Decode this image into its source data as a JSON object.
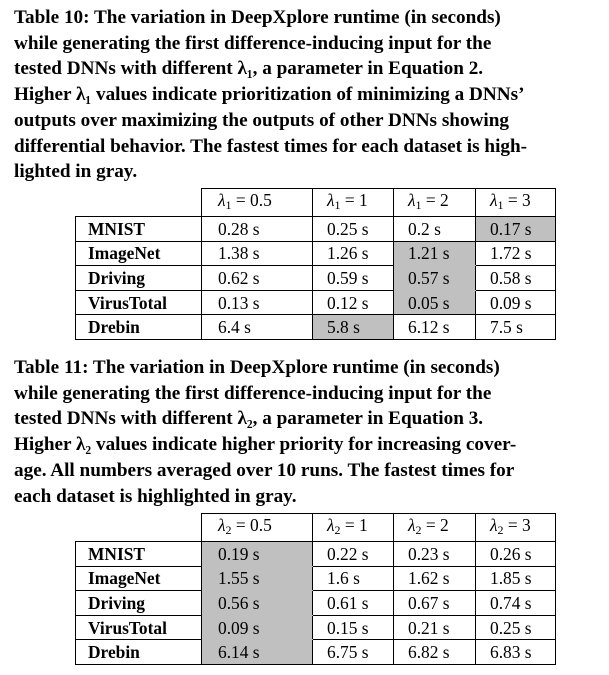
{
  "table10": {
    "caption_lines": [
      "Table 10: The variation in DeepXplore runtime (in seconds)",
      "while generating the first difference-inducing input for the",
      "tested DNNs with different λ₁, a parameter in Equation 2.",
      "Higher λ₁ values indicate prioritization of minimizing a DNNs’",
      "outputs over maximizing the outputs of other DNNs showing",
      "differential behavior. The fastest times for each dataset is high-",
      "lighted in gray."
    ],
    "lambda_symbol": "λ",
    "lambda_subscript": "1",
    "headers": [
      "= 0.5",
      "= 1",
      "= 2",
      "= 3"
    ],
    "highlight_color": "#c0c0c0",
    "rows": [
      {
        "label": "MNIST",
        "values": [
          "0.28 s",
          "0.25 s",
          "0.2 s",
          "0.17 s"
        ],
        "highlight": 3
      },
      {
        "label": "ImageNet",
        "values": [
          "1.38 s",
          "1.26 s",
          "1.21 s",
          "1.72 s"
        ],
        "highlight": 2
      },
      {
        "label": "Driving",
        "values": [
          "0.62 s",
          "0.59 s",
          "0.57 s",
          "0.58 s"
        ],
        "highlight": 2
      },
      {
        "label": "VirusTotal",
        "values": [
          "0.13 s",
          "0.12 s",
          "0.05 s",
          "0.09 s"
        ],
        "highlight": 2
      },
      {
        "label": "Drebin",
        "values": [
          "6.4 s",
          "5.8 s",
          "6.12 s",
          "7.5 s"
        ],
        "highlight": 1
      }
    ]
  },
  "table11": {
    "caption_lines": [
      "Table 11: The variation in DeepXplore runtime (in seconds)",
      "while generating the first difference-inducing input for the",
      "tested DNNs with different λ₂, a parameter in Equation 3.",
      "Higher λ₂ values indicate higher priority for increasing cover-",
      "age. All numbers averaged over 10 runs. The fastest times for",
      "each dataset is highlighted in gray."
    ],
    "lambda_symbol": "λ",
    "lambda_subscript": "2",
    "headers": [
      "= 0.5",
      "= 1",
      "= 2",
      "= 3"
    ],
    "highlight_color": "#c0c0c0",
    "rows": [
      {
        "label": "MNIST",
        "values": [
          "0.19 s",
          "0.22 s",
          "0.23 s",
          "0.26 s"
        ],
        "highlight": 0
      },
      {
        "label": "ImageNet",
        "values": [
          "1.55 s",
          "1.6 s",
          "1.62 s",
          "1.85 s"
        ],
        "highlight": 0
      },
      {
        "label": "Driving",
        "values": [
          "0.56 s",
          "0.61 s",
          "0.67 s",
          "0.74 s"
        ],
        "highlight": 0
      },
      {
        "label": "VirusTotal",
        "values": [
          "0.09 s",
          "0.15 s",
          "0.21 s",
          "0.25 s"
        ],
        "highlight": 0
      },
      {
        "label": "Drebin",
        "values": [
          "6.14 s",
          "6.75 s",
          "6.82 s",
          "6.83 s"
        ],
        "highlight": 0
      }
    ]
  }
}
